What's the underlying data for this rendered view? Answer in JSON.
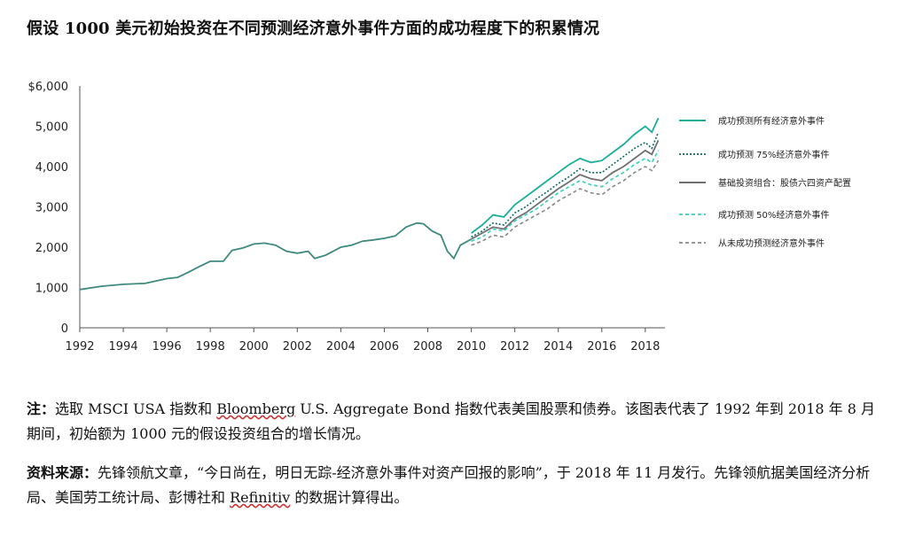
{
  "title": "假设 1000 美元初始投资在不同预测经济意外事件方面的成功程度下的积累情况",
  "chart_data": {
    "type": "line",
    "title": "假设 1000 美元初始投资在不同预测经济意外事件方面的成功程度下的积累情况",
    "xlim": [
      1992,
      2018.7
    ],
    "ylim": [
      0,
      6000
    ],
    "y_ticks": [
      "$6,000",
      "5,000",
      "4,000",
      "3,000",
      "2,000",
      "1,000",
      "0"
    ],
    "y_tick_values": [
      6000,
      5000,
      4000,
      3000,
      2000,
      1000,
      0
    ],
    "x_ticks": [
      "1992",
      "1994",
      "1996",
      "1998",
      "2000",
      "2002",
      "2004",
      "2006",
      "2008",
      "2010",
      "2012",
      "2014",
      "2016",
      "2018"
    ],
    "x_tick_values": [
      1992,
      1994,
      1996,
      1998,
      2000,
      2002,
      2004,
      2006,
      2008,
      2010,
      2012,
      2014,
      2016,
      2018
    ],
    "grid": false,
    "legend_position": "right",
    "base_series": {
      "x": [
        1992,
        1993,
        1994,
        1995,
        1996,
        1996.5,
        1997,
        1997.5,
        1998,
        1998.6,
        1999,
        1999.5,
        2000,
        2000.5,
        2001,
        2001.5,
        2002,
        2002.5,
        2002.8,
        2003.3,
        2004,
        2004.5,
        2005,
        2005.5,
        2006,
        2006.5,
        2007,
        2007.5,
        2007.8,
        2008.2,
        2008.6,
        2008.9,
        2009.2,
        2009.5,
        2010
      ],
      "values": [
        950,
        1030,
        1080,
        1100,
        1220,
        1250,
        1380,
        1520,
        1650,
        1650,
        1920,
        1980,
        2080,
        2100,
        2050,
        1900,
        1850,
        1900,
        1720,
        1800,
        2000,
        2050,
        2150,
        2180,
        2220,
        2280,
        2500,
        2600,
        2580,
        2400,
        2300,
        1900,
        1720,
        2050,
        2200
      ]
    },
    "series": [
      {
        "name": "成功预测所有经济意外事件",
        "color": "#1aae9a",
        "style": "solid",
        "x": [
          2010,
          2010.5,
          2011,
          2011.5,
          2012,
          2012.5,
          2013,
          2013.5,
          2014,
          2014.5,
          2015,
          2015.5,
          2016,
          2016.5,
          2017,
          2017.5,
          2018,
          2018.3,
          2018.6
        ],
        "values": [
          2350,
          2550,
          2800,
          2750,
          3050,
          3250,
          3450,
          3650,
          3850,
          4050,
          4200,
          4100,
          4150,
          4350,
          4550,
          4800,
          5000,
          4850,
          5200
        ]
      },
      {
        "name": "成功预测 75%经济意外事件",
        "color": "#0b6b5e",
        "style": "dotted",
        "x": [
          2010,
          2010.5,
          2011,
          2011.5,
          2012,
          2012.5,
          2013,
          2013.5,
          2014,
          2014.5,
          2015,
          2015.5,
          2016,
          2016.5,
          2017,
          2017.5,
          2018,
          2018.3,
          2018.6
        ],
        "values": [
          2250,
          2400,
          2600,
          2550,
          2850,
          3000,
          3200,
          3380,
          3580,
          3750,
          3950,
          3850,
          3850,
          4050,
          4250,
          4450,
          4600,
          4450,
          4850
        ]
      },
      {
        "name": "基础投资组合：股债六四资产配置",
        "color": "#707070",
        "style": "solid",
        "x": [
          2010,
          2010.5,
          2011,
          2011.5,
          2012,
          2012.5,
          2013,
          2013.5,
          2014,
          2014.5,
          2015,
          2015.5,
          2016,
          2016.5,
          2017,
          2017.5,
          2018,
          2018.3,
          2018.6
        ],
        "values": [
          2200,
          2350,
          2500,
          2450,
          2700,
          2850,
          3050,
          3250,
          3450,
          3620,
          3800,
          3700,
          3650,
          3850,
          4000,
          4200,
          4400,
          4300,
          4650
        ]
      },
      {
        "name": "成功预测 50%经济意外事件",
        "color": "#35d0bd",
        "style": "dashed",
        "x": [
          2010,
          2010.5,
          2011,
          2011.5,
          2012,
          2012.5,
          2013,
          2013.5,
          2014,
          2014.5,
          2015,
          2015.5,
          2016,
          2016.5,
          2017,
          2017.5,
          2018,
          2018.3,
          2018.6
        ],
        "values": [
          2150,
          2250,
          2450,
          2400,
          2650,
          2800,
          2950,
          3150,
          3350,
          3500,
          3650,
          3550,
          3500,
          3700,
          3850,
          4050,
          4200,
          4100,
          4400
        ]
      },
      {
        "name": "从未成功预测经济意外事件",
        "color": "#888888",
        "style": "dashed",
        "x": [
          2010,
          2010.5,
          2011,
          2011.5,
          2012,
          2012.5,
          2013,
          2013.5,
          2014,
          2014.5,
          2015,
          2015.5,
          2016,
          2016.5,
          2017,
          2017.5,
          2018,
          2018.3,
          2018.6
        ],
        "values": [
          2050,
          2150,
          2300,
          2250,
          2500,
          2650,
          2800,
          2950,
          3150,
          3300,
          3450,
          3350,
          3300,
          3500,
          3650,
          3850,
          4000,
          3900,
          4150
        ]
      }
    ]
  },
  "notes": {
    "note_label": "注：",
    "note_text_1": "选取 MSCI USA 指数和 ",
    "note_bloomberg": "Bloomberg",
    "note_text_2": " U.S. Aggregate Bond 指数代表美国股票和债券。该图表代表了 1992 年到 2018 年 8 月期间，初始额为 1000 元的假设投资组合的增长情况。",
    "source_label": "资料来源：",
    "source_text_1": "先锋领航文章，“今日尚在，明日无踪-经济意外事件对资产回报的影响”，于 2018 年 11 月发行。先锋领航据美国经济分析局、美国劳工统计局、彭博社和 ",
    "source_refinitiv": "Refinitiv",
    "source_text_2": " 的数据计算得出。"
  }
}
